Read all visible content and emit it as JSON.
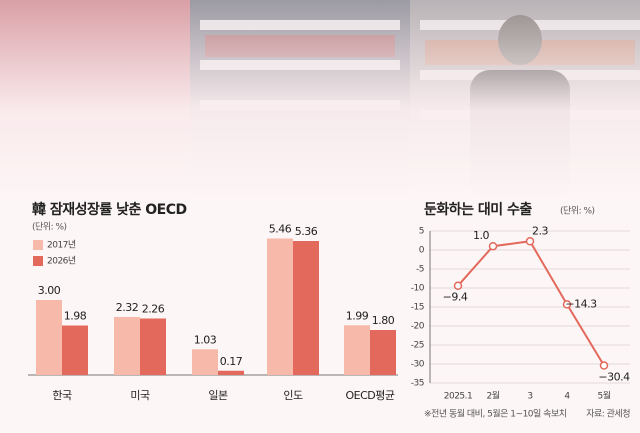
{
  "chart_data": [
    {
      "type": "bar",
      "title": "韓 잠재성장률 낮춘 OECD",
      "subtitle": "(단위: %)",
      "categories": [
        "한국",
        "미국",
        "일본",
        "인도",
        "OECD평균"
      ],
      "series": [
        {
          "name": "2017년",
          "color": "#f6b9aa",
          "values": [
            3.0,
            2.32,
            1.03,
            5.46,
            1.99
          ],
          "value_labels": [
            "3.00",
            "2.32",
            "1.03",
            "5.46",
            "1.99"
          ]
        },
        {
          "name": "2026년",
          "color": "#e2695c",
          "values": [
            1.98,
            2.26,
            0.17,
            5.36,
            1.8
          ],
          "value_labels": [
            "1.98",
            "2.26",
            "0.17",
            "5.36",
            "1.80"
          ]
        }
      ]
    },
    {
      "type": "line",
      "title": "둔화하는 대미 수출",
      "subtitle": "(단위: %)",
      "categories": [
        "2025.1",
        "2월",
        "3",
        "4",
        "5월"
      ],
      "series": [
        {
          "name": "대미 수출",
          "color": "#e2695c",
          "values": [
            -9.4,
            1.0,
            2.3,
            -14.3,
            -30.4
          ],
          "value_labels": [
            "−9.4",
            "1.0",
            "2.3",
            "−14.3",
            "−30.4"
          ]
        }
      ],
      "ylim": [
        -35,
        5
      ],
      "yticks": [
        5,
        0,
        -5,
        -10,
        -15,
        -20,
        -25,
        -30,
        -35
      ],
      "grid": true,
      "note": "※전년 동월 대비, 5월은 1~10일 속보치",
      "source": "자료: 관세청"
    }
  ]
}
